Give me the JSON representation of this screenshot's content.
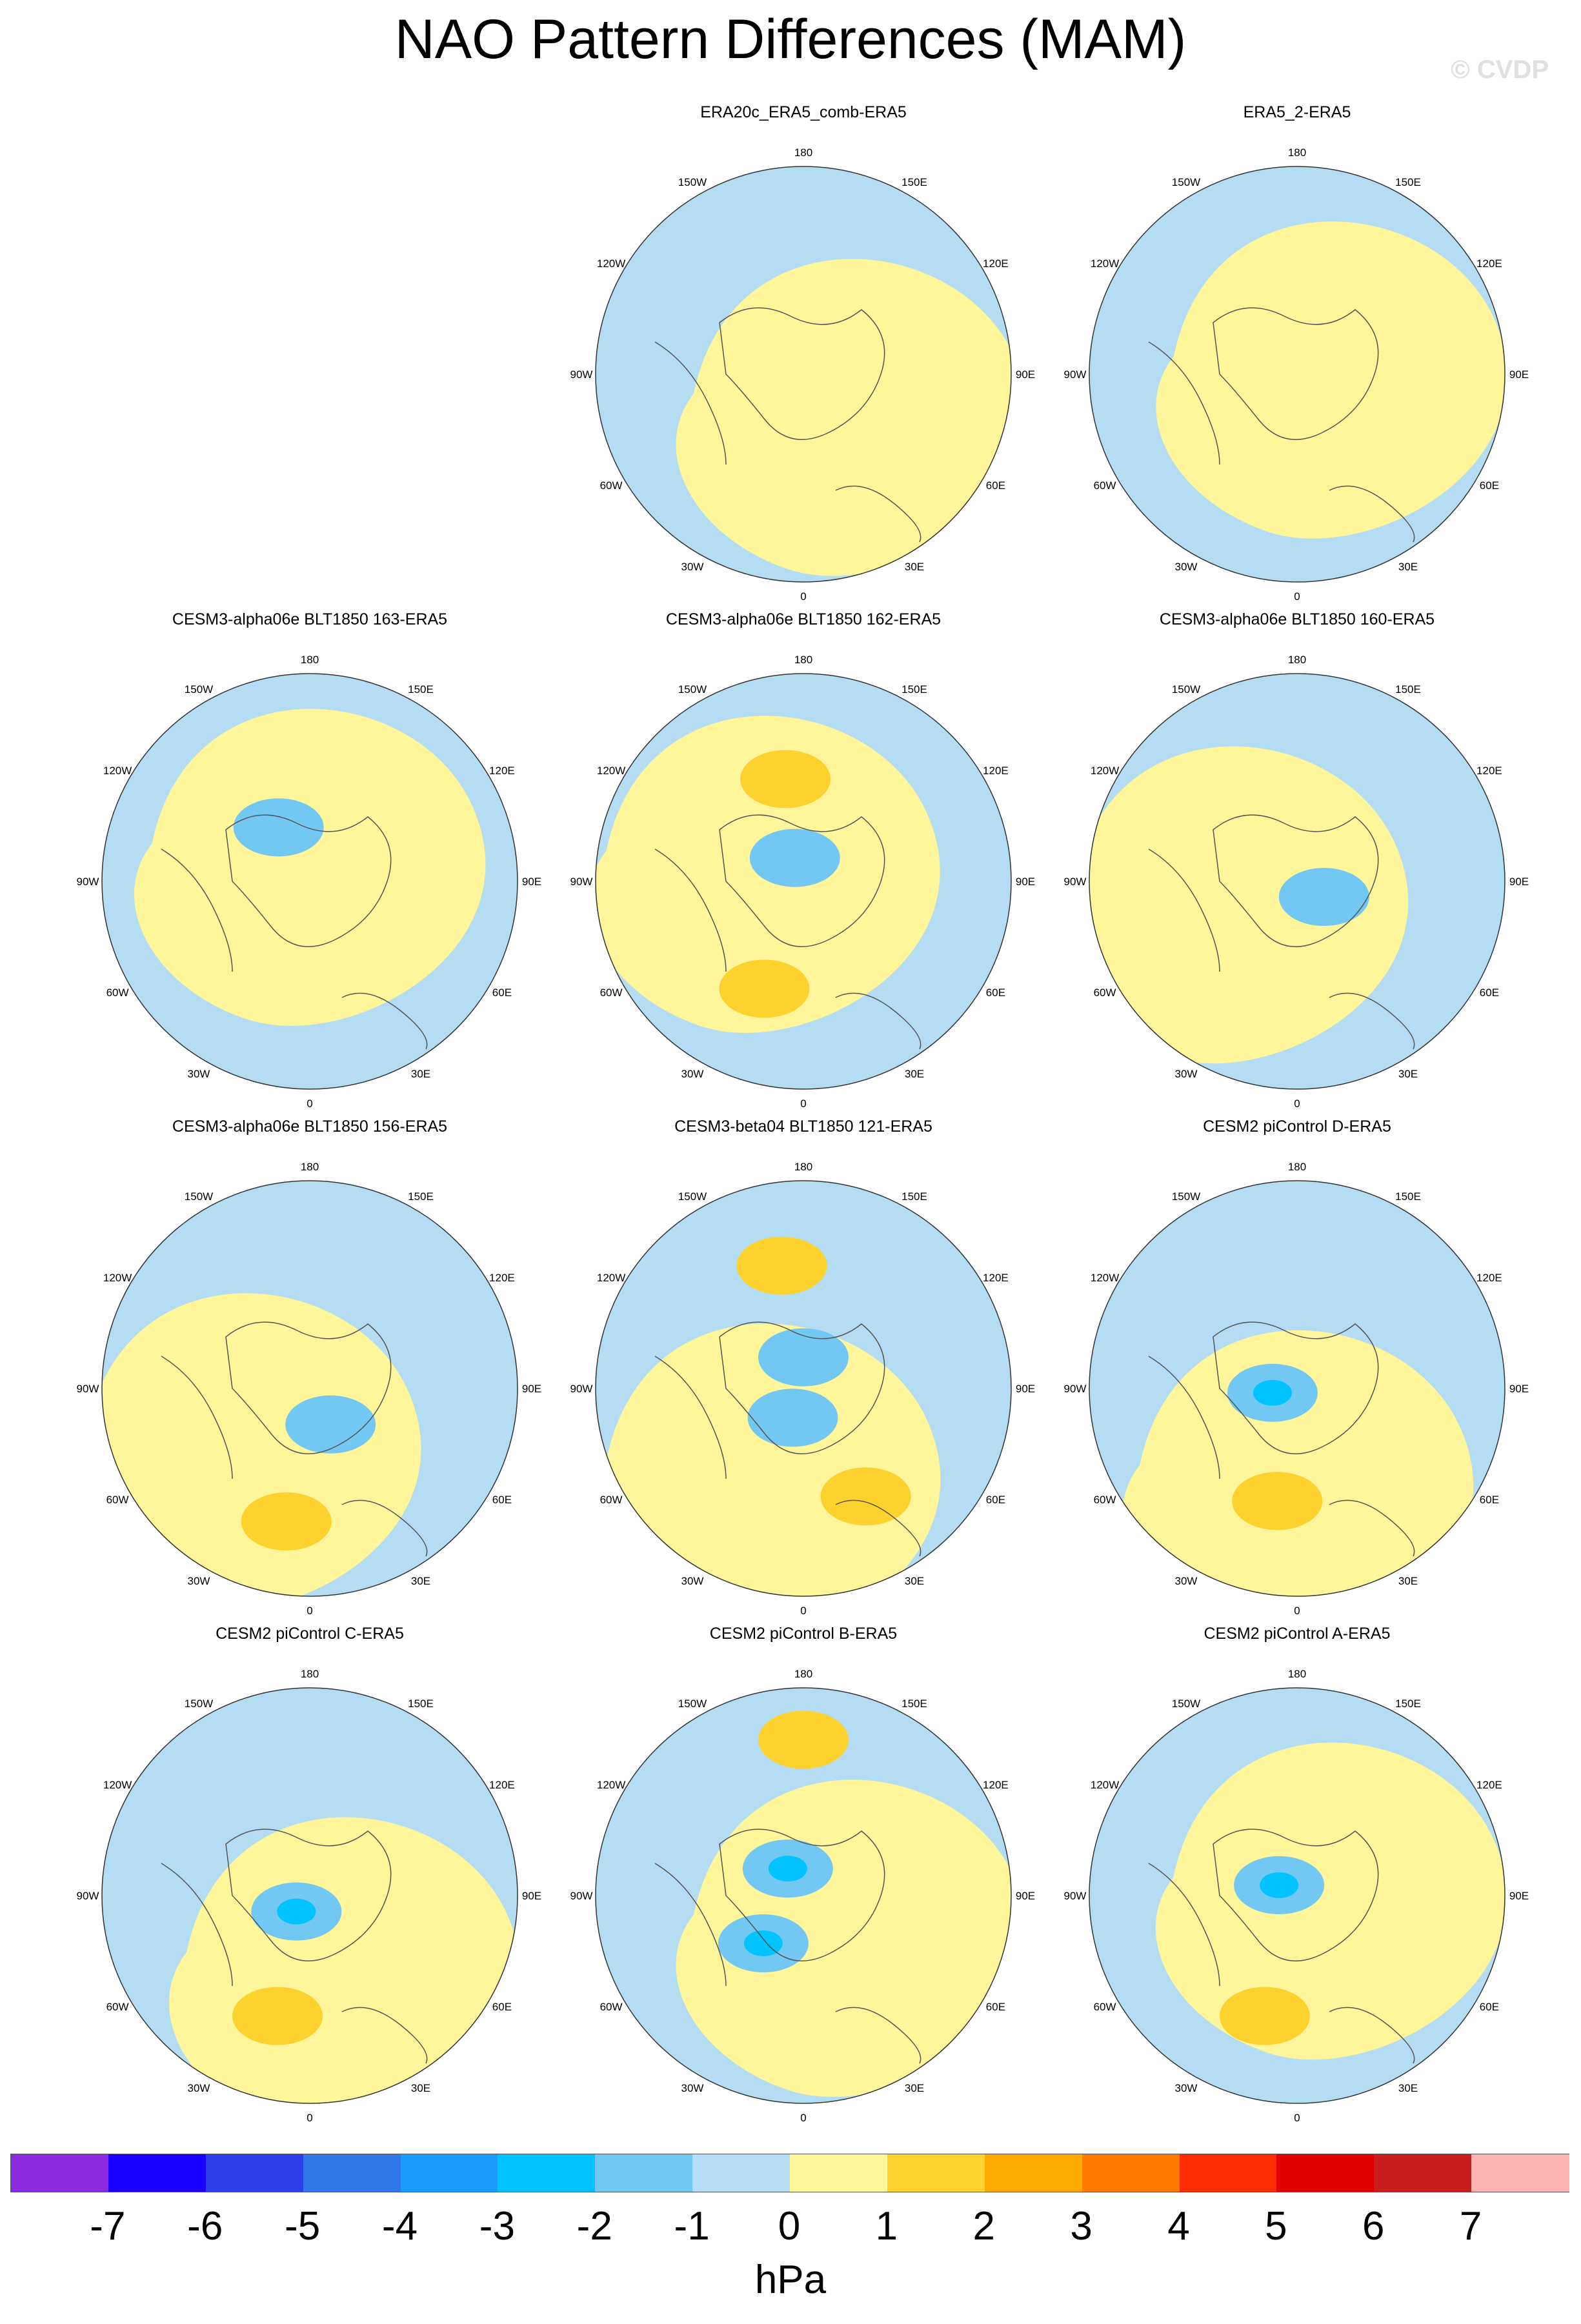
{
  "title": "NAO Pattern Differences (MAM)",
  "watermark": "© CVDP",
  "units": "hPa",
  "colorbar": {
    "colors": [
      "#8a2be2",
      "#1a00ff",
      "#2b40e8",
      "#3078ea",
      "#1a9cff",
      "#00c3ff",
      "#72c8f2",
      "#b4dcf2",
      "#fff59a",
      "#fdd22e",
      "#ffaa00",
      "#ff7a00",
      "#ff2e00",
      "#e00000",
      "#c81e1e",
      "#ffb4b4"
    ],
    "labels": [
      "-7",
      "-6",
      "-5",
      "-4",
      "-3",
      "-2",
      "-1",
      "0",
      "1",
      "2",
      "3",
      "4",
      "5",
      "6",
      "7"
    ]
  },
  "panels": [
    {
      "title": "ERA20c_ERA5_comb-ERA5",
      "neg_centers": [],
      "pos_centers": []
    },
    {
      "title": "ERA5_2-ERA5",
      "neg_centers": [],
      "pos_centers": []
    },
    {
      "title": "CESM3-alpha06e BLT1850 163-ERA5",
      "neg_centers": [
        {
          "lon": 150,
          "r": 0.3,
          "v": -2
        }
      ],
      "pos_centers": []
    },
    {
      "title": "CESM3-alpha06e BLT1850 162-ERA5",
      "neg_centers": [
        {
          "lon": 160,
          "r": 0.12,
          "v": -2
        }
      ],
      "pos_centers": [
        {
          "lon": 20,
          "r": 0.55,
          "v": 2
        },
        {
          "lon": 170,
          "r": 0.5,
          "v": 2
        }
      ]
    },
    {
      "title": "CESM3-alpha06e BLT1850 160-ERA5",
      "neg_centers": [
        {
          "lon": 300,
          "r": 0.15,
          "v": -2
        }
      ],
      "pos_centers": []
    },
    {
      "title": "CESM3-alpha06e BLT1850 156-ERA5",
      "neg_centers": [
        {
          "lon": 330,
          "r": 0.2,
          "v": -2
        }
      ],
      "pos_centers": [
        {
          "lon": 10,
          "r": 0.65,
          "v": 2
        }
      ]
    },
    {
      "title": "CESM3-beta04 BLT1850 121-ERA5",
      "neg_centers": [
        {
          "lon": 180,
          "r": 0.15,
          "v": -2
        },
        {
          "lon": 20,
          "r": 0.15,
          "v": -2
        }
      ],
      "pos_centers": [
        {
          "lon": 330,
          "r": 0.6,
          "v": 2
        },
        {
          "lon": 170,
          "r": 0.6,
          "v": 2
        }
      ]
    },
    {
      "title": "CESM2 piControl D-ERA5",
      "neg_centers": [
        {
          "lon": 80,
          "r": 0.12,
          "v": -4
        }
      ],
      "pos_centers": [
        {
          "lon": 10,
          "r": 0.55,
          "v": 2
        }
      ]
    },
    {
      "title": "CESM2 piControl C-ERA5",
      "neg_centers": [
        {
          "lon": 40,
          "r": 0.1,
          "v": -4
        }
      ],
      "pos_centers": [
        {
          "lon": 15,
          "r": 0.6,
          "v": 2
        }
      ]
    },
    {
      "title": "CESM2 piControl B-ERA5",
      "neg_centers": [
        {
          "lon": 150,
          "r": 0.15,
          "v": -3
        },
        {
          "lon": 40,
          "r": 0.3,
          "v": -3
        }
      ],
      "pos_centers": [
        {
          "lon": 180,
          "r": 0.75,
          "v": 2
        }
      ]
    },
    {
      "title": "CESM2 piControl A-ERA5",
      "neg_centers": [
        {
          "lon": 120,
          "r": 0.1,
          "v": -3
        }
      ],
      "pos_centers": [
        {
          "lon": 15,
          "r": 0.6,
          "v": 2
        }
      ]
    }
  ],
  "lon_labels": [
    "180",
    "150E",
    "120E",
    "90E",
    "60E",
    "30E",
    "0",
    "30W",
    "60W",
    "90W",
    "120W",
    "150W"
  ]
}
